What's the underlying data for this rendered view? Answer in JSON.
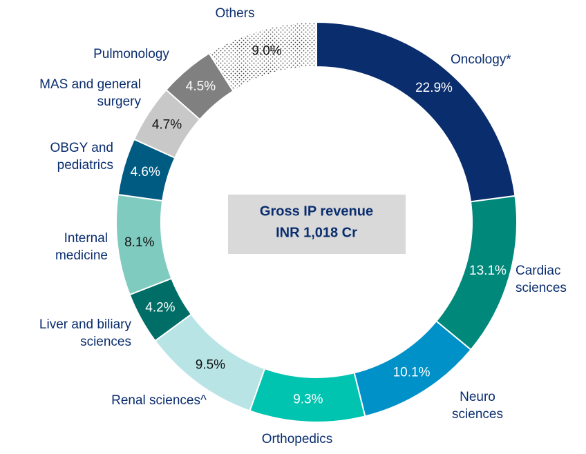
{
  "chart_data": {
    "type": "donut",
    "center_label": [
      "Gross IP revenue",
      "INR 1,018 Cr"
    ],
    "categories": [
      "Oncology*",
      "Cardiac sciences",
      "Neuro sciences",
      "Orthopedics",
      "Renal sciences^",
      "Liver and biliary sciences",
      "Internal medicine",
      "OBGY and pediatrics",
      "MAS and general surgery",
      "Pulmonology",
      "Others"
    ],
    "values": [
      22.9,
      13.1,
      10.1,
      9.3,
      9.5,
      4.2,
      8.1,
      4.6,
      4.7,
      4.5,
      9.0
    ],
    "value_labels": [
      "22.9%",
      "13.1%",
      "10.1%",
      "9.3%",
      "9.5%",
      "4.2%",
      "8.1%",
      "4.6%",
      "4.7%",
      "4.5%",
      "9.0%"
    ],
    "colors": [
      "#0a2d6e",
      "#00897b",
      "#0091c8",
      "#00c4b0",
      "#b9e4e6",
      "#006e66",
      "#80cbbf",
      "#005b82",
      "#c8c8c8",
      "#808080",
      "#ffffff"
    ],
    "patterns": [
      null,
      null,
      null,
      null,
      null,
      null,
      null,
      null,
      null,
      null,
      "dots"
    ]
  }
}
